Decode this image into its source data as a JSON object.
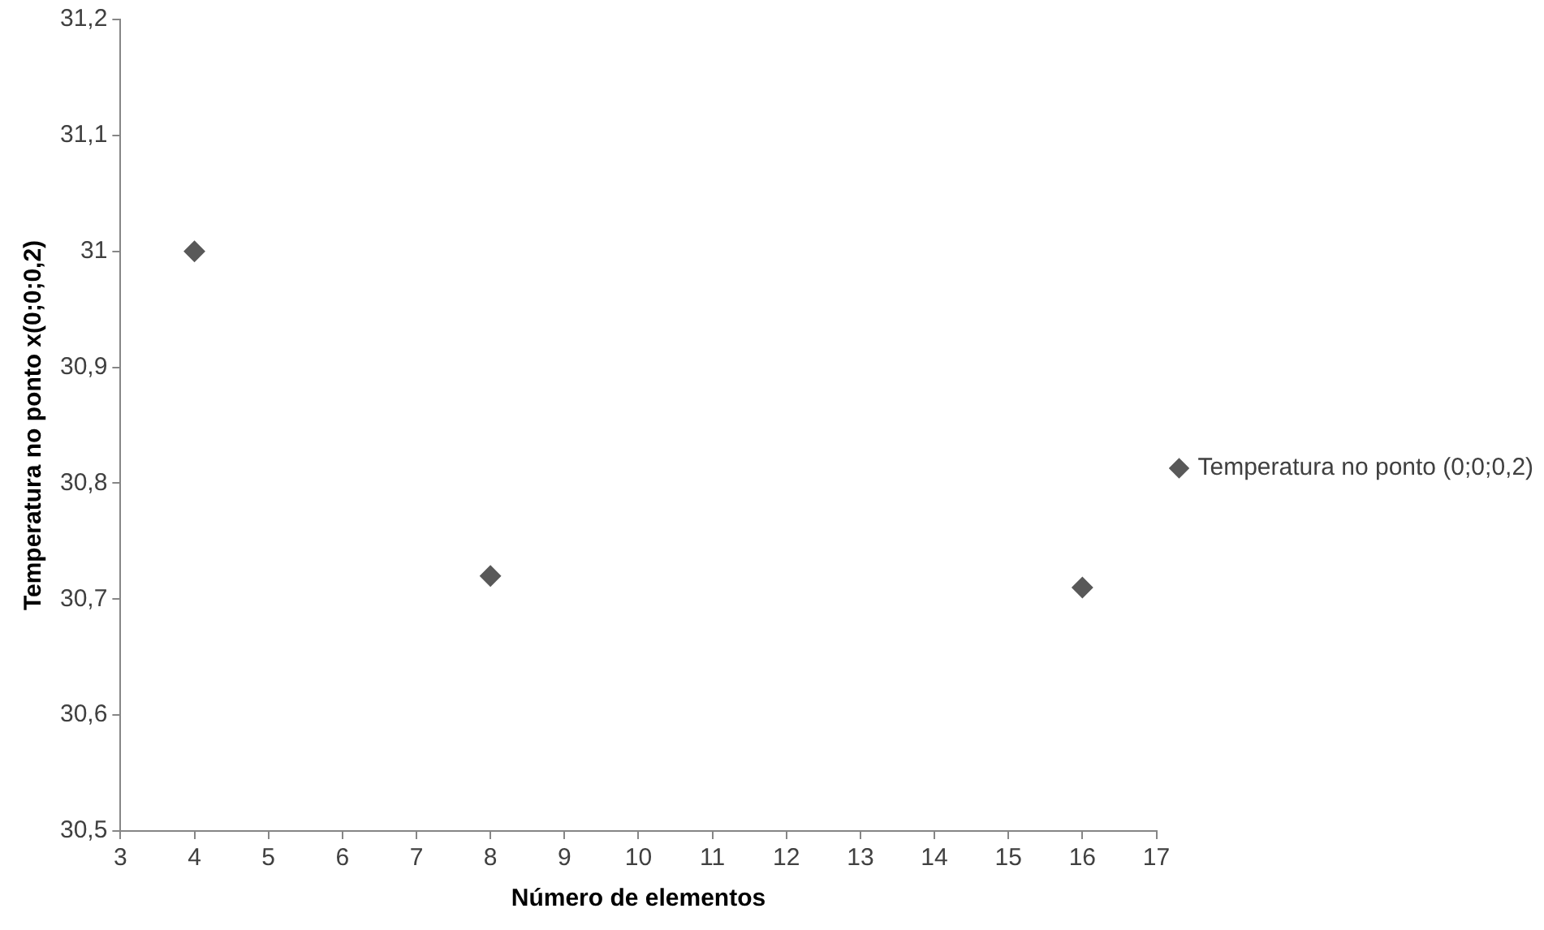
{
  "chart_data": {
    "type": "scatter",
    "xlabel": "Número de elementos",
    "ylabel": "Temperatura no ponto x(0;0;0,2)",
    "x": [
      4,
      8,
      16
    ],
    "series": [
      {
        "name": "Temperatura no ponto (0;0;0,2)",
        "color": "#595959",
        "values": [
          31.0,
          30.72,
          30.71
        ]
      }
    ],
    "xlim": [
      3,
      17
    ],
    "xticks": [
      3,
      4,
      5,
      6,
      7,
      8,
      9,
      10,
      11,
      12,
      13,
      14,
      15,
      16,
      17
    ],
    "ylim": [
      30.5,
      31.2
    ],
    "yticks": [
      {
        "value": 30.5,
        "label": "30,5"
      },
      {
        "value": 30.6,
        "label": "30,6"
      },
      {
        "value": 30.7,
        "label": "30,7"
      },
      {
        "value": 30.8,
        "label": "30,8"
      },
      {
        "value": 30.9,
        "label": "30,9"
      },
      {
        "value": 31,
        "label": "31"
      },
      {
        "value": 31.1,
        "label": "31,1"
      },
      {
        "value": 31.2,
        "label": "31,2"
      }
    ],
    "grid": false,
    "legend": "right",
    "marker": "diamond"
  }
}
